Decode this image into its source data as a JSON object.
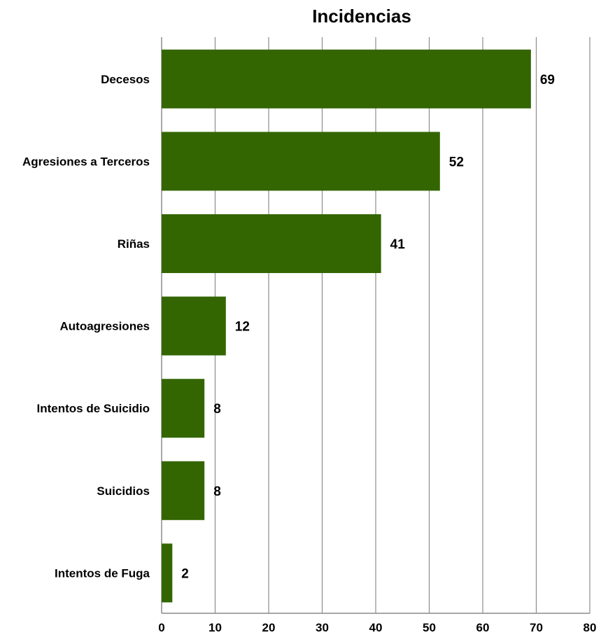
{
  "chart_data": {
    "type": "bar",
    "orientation": "horizontal",
    "title": "Incidencias",
    "categories": [
      "Decesos",
      "Agresiones a Terceros",
      "Riñas",
      "Autoagresiones",
      "Intentos de Suicidio",
      "Suicidios",
      "Intentos de Fuga"
    ],
    "values": [
      69,
      52,
      41,
      12,
      8,
      8,
      2
    ],
    "xlim": [
      0,
      80
    ],
    "xticks": [
      0,
      10,
      20,
      30,
      40,
      50,
      60,
      70,
      80
    ],
    "grid": true,
    "data_labels": true,
    "bar_color": "#336600",
    "legend": "none"
  }
}
